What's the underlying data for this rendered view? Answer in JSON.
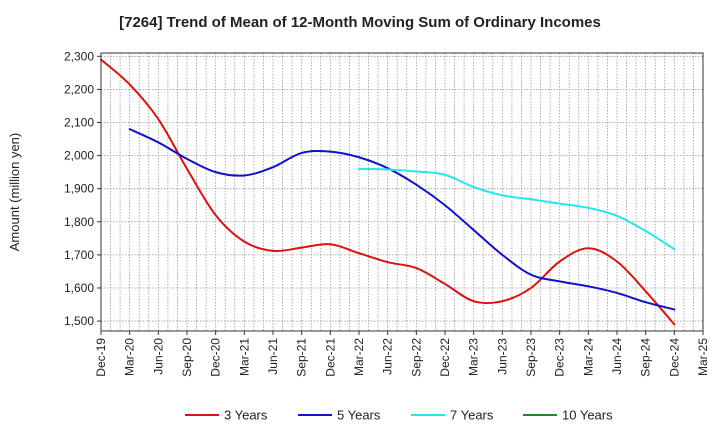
{
  "chart_data": {
    "type": "line",
    "title": "[7264]  Trend of Mean of 12-Month Moving Sum of Ordinary Incomes",
    "xlabel": "",
    "ylabel": "Amount (million yen)",
    "ylim": [
      1470,
      2310
    ],
    "yticks": [
      1500,
      1600,
      1700,
      1800,
      1900,
      2000,
      2100,
      2200,
      2300
    ],
    "ytick_labels": [
      "1,500",
      "1,600",
      "1,700",
      "1,800",
      "1,900",
      "2,000",
      "2,100",
      "2,200",
      "2,300"
    ],
    "categories": [
      "Dec-19",
      "Mar-20",
      "Jun-20",
      "Sep-20",
      "Dec-20",
      "Mar-21",
      "Jun-21",
      "Sep-21",
      "Dec-21",
      "Mar-22",
      "Jun-22",
      "Sep-22",
      "Dec-22",
      "Mar-23",
      "Jun-23",
      "Sep-23",
      "Dec-23",
      "Mar-24",
      "Jun-24",
      "Sep-24",
      "Dec-24",
      "Mar-25"
    ],
    "grid": true,
    "legend_position": "bottom",
    "series": [
      {
        "name": "3 Years",
        "color": "#dd1111",
        "values": [
          2290,
          2215,
          2110,
          1960,
          1820,
          1740,
          1712,
          1722,
          1732,
          1705,
          1678,
          1660,
          1612,
          1560,
          1560,
          1600,
          1680,
          1720,
          1680,
          1590,
          1490,
          null
        ]
      },
      {
        "name": "5 Years",
        "color": "#1111cc",
        "values": [
          null,
          2080,
          2040,
          1990,
          1950,
          1940,
          1965,
          2008,
          2012,
          1995,
          1962,
          1912,
          1850,
          1775,
          1700,
          1640,
          1620,
          1605,
          1585,
          1557,
          1535,
          null
        ]
      },
      {
        "name": "7 Years",
        "color": "#22e8ee",
        "values": [
          null,
          null,
          null,
          null,
          null,
          null,
          null,
          null,
          null,
          1960,
          1958,
          1952,
          1942,
          1905,
          1880,
          1868,
          1855,
          1842,
          1818,
          1772,
          1717,
          null
        ]
      },
      {
        "name": "10 Years",
        "color": "#228822",
        "values": [
          null,
          null,
          null,
          null,
          null,
          null,
          null,
          null,
          null,
          null,
          null,
          null,
          null,
          null,
          null,
          null,
          null,
          null,
          null,
          null,
          null,
          null
        ]
      }
    ]
  }
}
